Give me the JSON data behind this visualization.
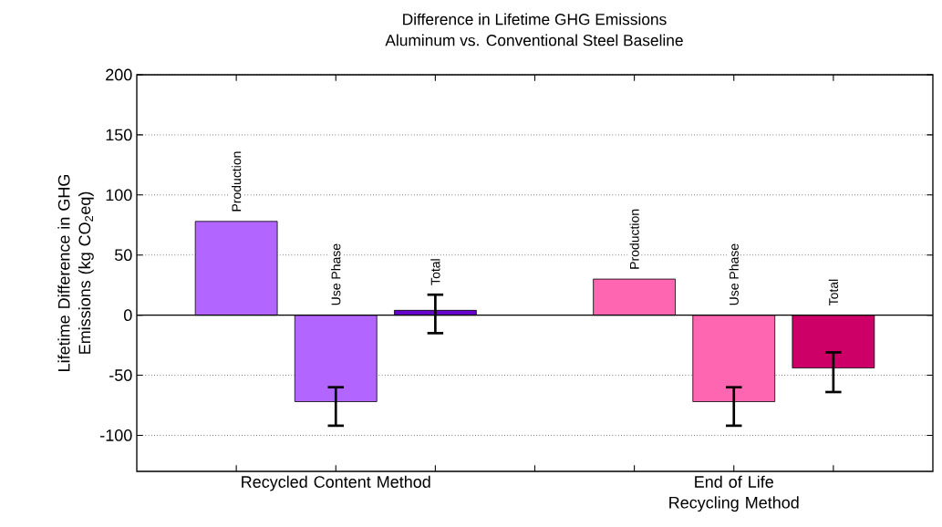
{
  "chart_data": {
    "type": "bar",
    "title": "Difference in Lifetime GHG Emissions",
    "subtitle": "Aluminum vs. Conventional Steel Baseline",
    "ylabel": "Lifetime Difference in GHG Emissions (kg CO$_{2}$eq)",
    "categories": [
      "Recycled Content Method",
      "End of Life Recycling Method"
    ],
    "series": [
      {
        "name": "Production",
        "colors": [
          "#b266ff",
          "#ff66b2"
        ],
        "values": [
          78,
          30
        ],
        "errors": [
          null,
          null
        ]
      },
      {
        "name": "Use Phase",
        "colors": [
          "#b266ff",
          "#ff66b2"
        ],
        "values": [
          -72,
          -72
        ],
        "errors": [
          [
            -92,
            -60
          ],
          [
            -92,
            -60
          ]
        ]
      },
      {
        "name": "Total",
        "colors": [
          "#6600cc",
          "#cc0066"
        ],
        "values": [
          4,
          -44
        ],
        "errors": [
          [
            -15,
            17
          ],
          [
            -64,
            -31
          ]
        ]
      }
    ],
    "ylim": [
      -130,
      200
    ],
    "yticks": [
      -100,
      -50,
      0,
      50,
      100,
      150,
      200
    ],
    "grid": "y"
  }
}
